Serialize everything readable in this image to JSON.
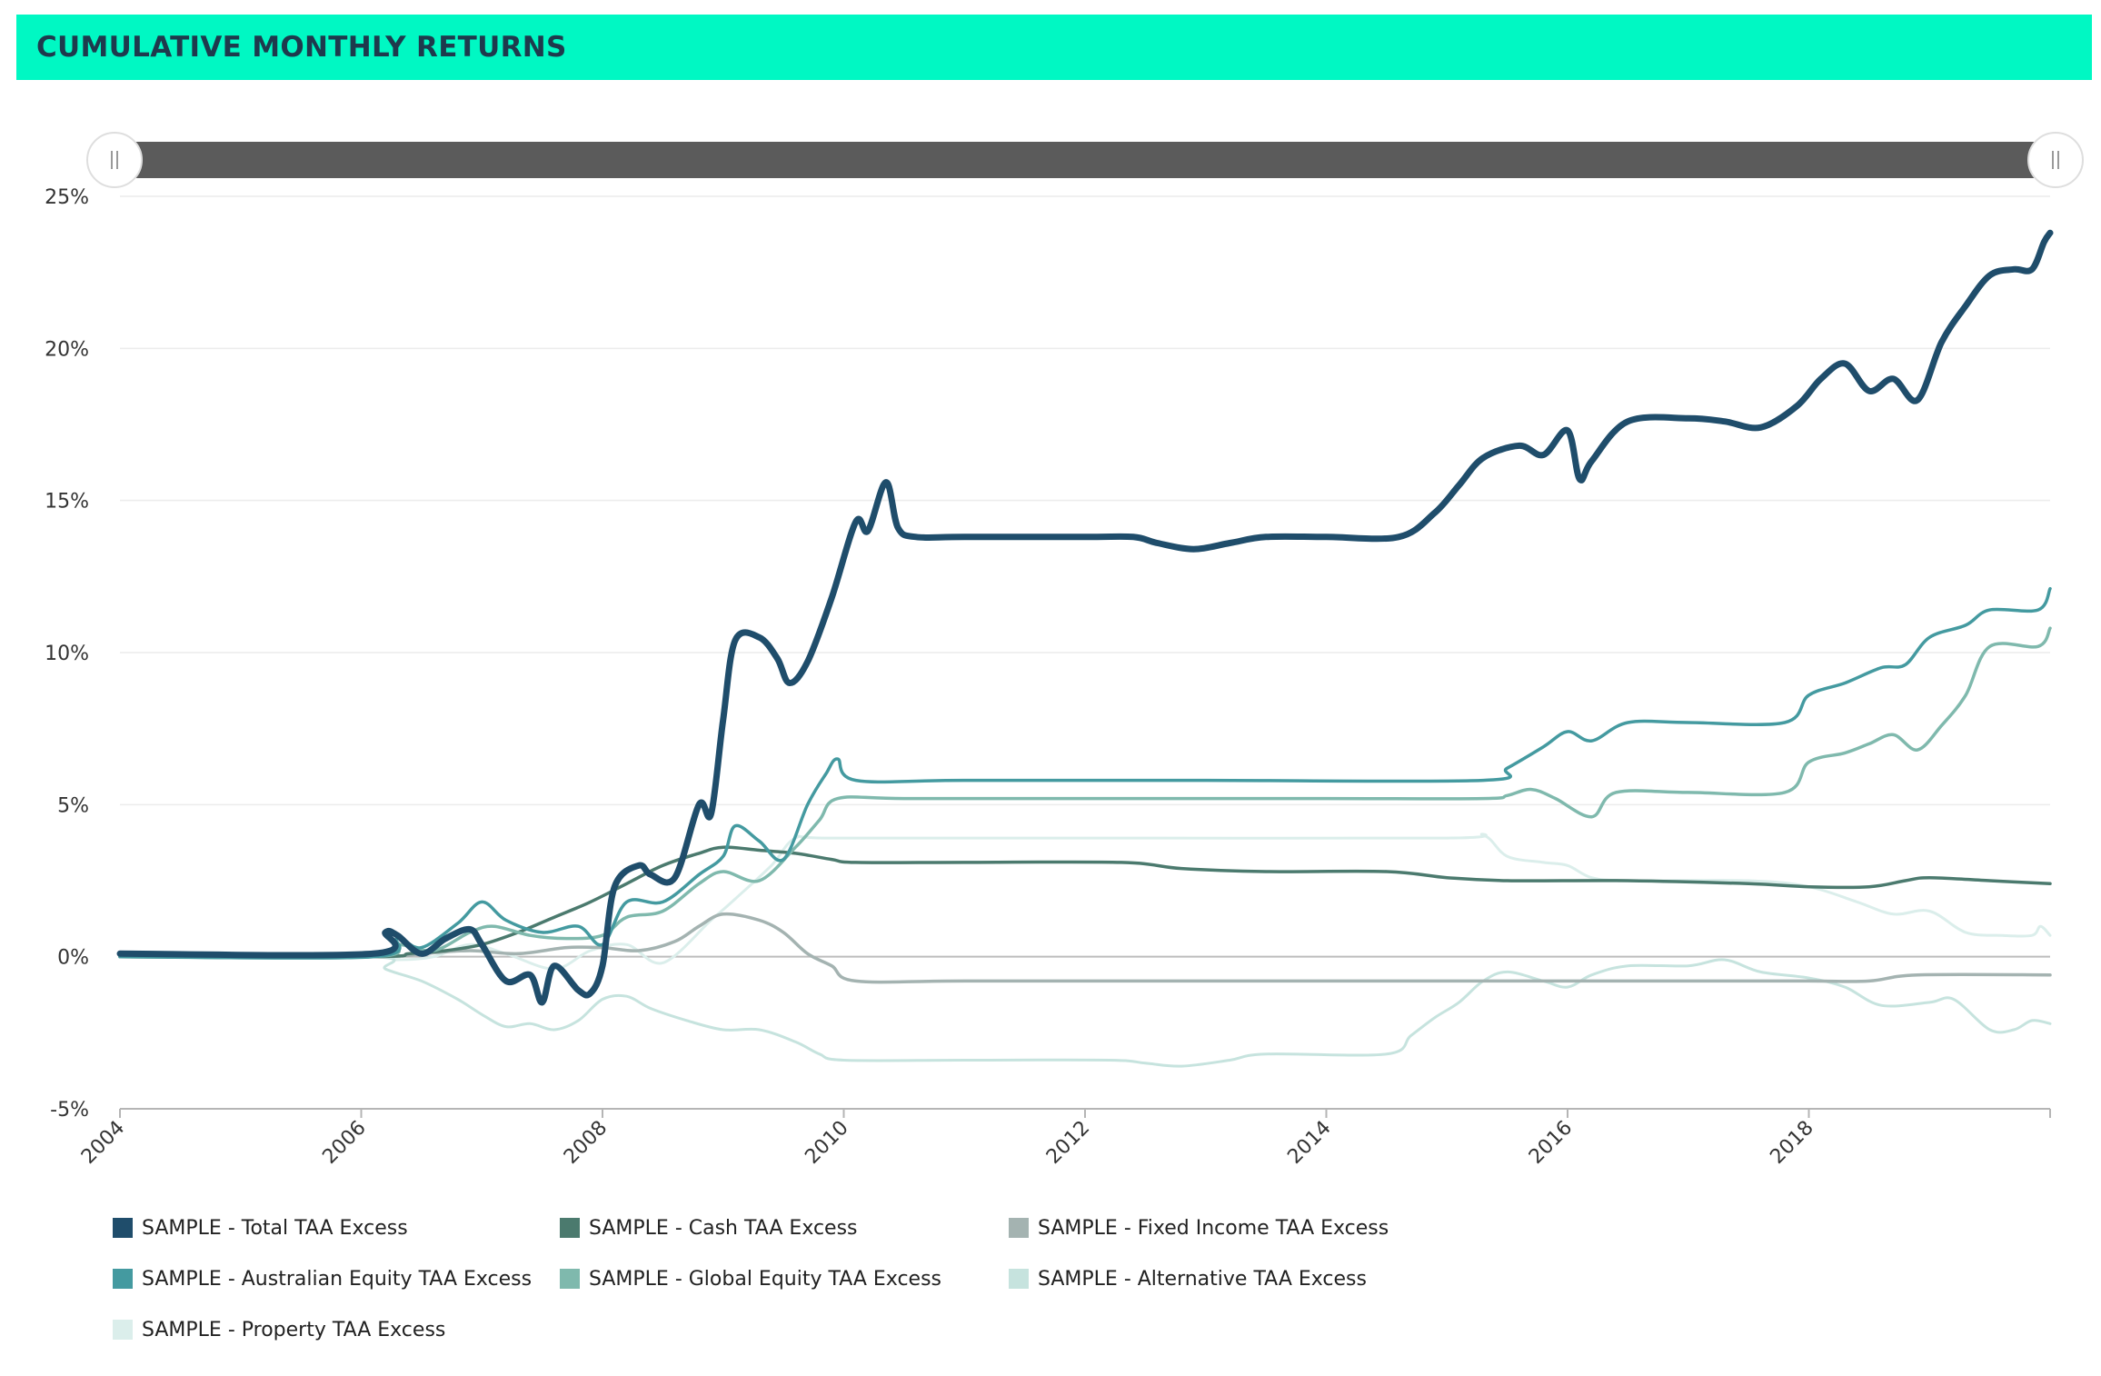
{
  "header": {
    "title": "CUMULATIVE MONTHLY RETURNS"
  },
  "colors": {
    "header_bg": "#00f8c3",
    "header_text": "#1e3a4d",
    "navigator": "#5b5b5b"
  },
  "range_selector": {
    "handle_left_icon": "grip-icon",
    "handle_right_icon": "grip-icon"
  },
  "chart_data": {
    "type": "line",
    "title": "",
    "xlabel": "",
    "ylabel": "",
    "x_range": [
      2004.0,
      2020.0
    ],
    "ylim": [
      -5,
      25
    ],
    "y_ticks": [
      -5,
      0,
      5,
      10,
      15,
      20,
      25
    ],
    "y_tick_labels": [
      "-5%",
      "0%",
      "5%",
      "10%",
      "15%",
      "20%",
      "25%"
    ],
    "x_ticks": [
      2004,
      2006,
      2008,
      2010,
      2012,
      2014,
      2016,
      2018
    ],
    "x_tick_labels": [
      "2004",
      "2006",
      "2008",
      "2010",
      "2012",
      "2014",
      "2016",
      "2018"
    ],
    "grid": "horizontal",
    "legend_position": "bottom-left",
    "series": [
      {
        "name": "SAMPLE - Property TAA Excess",
        "color": "#dbeeeb",
        "width": 3,
        "points": [
          [
            2004.0,
            0.0
          ],
          [
            2006.1,
            0.0
          ],
          [
            2006.3,
            -0.1
          ],
          [
            2006.6,
            0.0
          ],
          [
            2006.9,
            0.4
          ],
          [
            2007.2,
            0.1
          ],
          [
            2007.6,
            -0.4
          ],
          [
            2007.9,
            0.2
          ],
          [
            2008.2,
            0.4
          ],
          [
            2008.5,
            -0.2
          ],
          [
            2008.9,
            1.2
          ],
          [
            2009.1,
            1.9
          ],
          [
            2009.4,
            3.0
          ],
          [
            2009.6,
            3.9
          ],
          [
            2009.9,
            3.9
          ],
          [
            2012.0,
            3.9
          ],
          [
            2015.0,
            3.9
          ],
          [
            2015.3,
            4.0
          ],
          [
            2015.5,
            3.3
          ],
          [
            2015.8,
            3.1
          ],
          [
            2016.0,
            3.0
          ],
          [
            2016.2,
            2.6
          ],
          [
            2016.5,
            2.5
          ],
          [
            2017.5,
            2.5
          ],
          [
            2018.0,
            2.3
          ],
          [
            2018.4,
            1.8
          ],
          [
            2018.7,
            1.4
          ],
          [
            2019.0,
            1.5
          ],
          [
            2019.3,
            0.8
          ],
          [
            2019.6,
            0.7
          ],
          [
            2019.85,
            0.7
          ],
          [
            2019.92,
            1.0
          ],
          [
            2020.0,
            0.7
          ]
        ]
      },
      {
        "name": "SAMPLE - Alternative TAA Excess",
        "color": "#c6e3de",
        "width": 3,
        "points": [
          [
            2004.0,
            0.0
          ],
          [
            2006.1,
            0.0
          ],
          [
            2006.2,
            -0.4
          ],
          [
            2006.5,
            -0.8
          ],
          [
            2006.8,
            -1.4
          ],
          [
            2007.0,
            -1.9
          ],
          [
            2007.2,
            -2.3
          ],
          [
            2007.4,
            -2.2
          ],
          [
            2007.6,
            -2.4
          ],
          [
            2007.8,
            -2.1
          ],
          [
            2008.0,
            -1.4
          ],
          [
            2008.2,
            -1.3
          ],
          [
            2008.4,
            -1.7
          ],
          [
            2008.7,
            -2.1
          ],
          [
            2009.0,
            -2.4
          ],
          [
            2009.3,
            -2.4
          ],
          [
            2009.6,
            -2.8
          ],
          [
            2009.8,
            -3.2
          ],
          [
            2010.0,
            -3.4
          ],
          [
            2011.0,
            -3.4
          ],
          [
            2012.2,
            -3.4
          ],
          [
            2012.5,
            -3.5
          ],
          [
            2012.8,
            -3.6
          ],
          [
            2013.2,
            -3.4
          ],
          [
            2013.5,
            -3.2
          ],
          [
            2014.5,
            -3.2
          ],
          [
            2014.7,
            -2.6
          ],
          [
            2014.9,
            -2.0
          ],
          [
            2015.1,
            -1.5
          ],
          [
            2015.3,
            -0.8
          ],
          [
            2015.5,
            -0.5
          ],
          [
            2015.8,
            -0.8
          ],
          [
            2016.0,
            -1.0
          ],
          [
            2016.2,
            -0.6
          ],
          [
            2016.5,
            -0.3
          ],
          [
            2017.0,
            -0.3
          ],
          [
            2017.3,
            -0.1
          ],
          [
            2017.6,
            -0.5
          ],
          [
            2018.0,
            -0.7
          ],
          [
            2018.3,
            -1.0
          ],
          [
            2018.6,
            -1.6
          ],
          [
            2019.0,
            -1.5
          ],
          [
            2019.2,
            -1.4
          ],
          [
            2019.5,
            -2.4
          ],
          [
            2019.7,
            -2.4
          ],
          [
            2019.85,
            -2.1
          ],
          [
            2020.0,
            -2.2
          ]
        ]
      },
      {
        "name": "SAMPLE - Fixed Income TAA Excess",
        "color": "#a4b3b1",
        "width": 3.5,
        "points": [
          [
            2004.0,
            0.0
          ],
          [
            2006.1,
            0.0
          ],
          [
            2006.5,
            0.1
          ],
          [
            2006.9,
            0.2
          ],
          [
            2007.3,
            0.1
          ],
          [
            2007.7,
            0.3
          ],
          [
            2008.0,
            0.3
          ],
          [
            2008.3,
            0.2
          ],
          [
            2008.6,
            0.5
          ],
          [
            2008.8,
            1.0
          ],
          [
            2009.0,
            1.4
          ],
          [
            2009.3,
            1.2
          ],
          [
            2009.5,
            0.8
          ],
          [
            2009.7,
            0.1
          ],
          [
            2009.9,
            -0.3
          ],
          [
            2010.1,
            -0.8
          ],
          [
            2011.0,
            -0.8
          ],
          [
            2013.0,
            -0.8
          ],
          [
            2015.0,
            -0.8
          ],
          [
            2017.0,
            -0.8
          ],
          [
            2018.0,
            -0.8
          ],
          [
            2018.5,
            -0.8
          ],
          [
            2018.9,
            -0.6
          ],
          [
            2020.0,
            -0.6
          ]
        ]
      },
      {
        "name": "SAMPLE - Cash TAA Excess",
        "color": "#4b7a6e",
        "width": 3.5,
        "points": [
          [
            2004.0,
            0.0
          ],
          [
            2006.1,
            0.0
          ],
          [
            2006.4,
            0.1
          ],
          [
            2006.7,
            0.2
          ],
          [
            2007.0,
            0.4
          ],
          [
            2007.3,
            0.8
          ],
          [
            2007.6,
            1.3
          ],
          [
            2007.9,
            1.8
          ],
          [
            2008.2,
            2.4
          ],
          [
            2008.5,
            3.0
          ],
          [
            2008.8,
            3.4
          ],
          [
            2009.0,
            3.6
          ],
          [
            2009.3,
            3.5
          ],
          [
            2009.6,
            3.4
          ],
          [
            2009.9,
            3.2
          ],
          [
            2010.1,
            3.1
          ],
          [
            2011.0,
            3.1
          ],
          [
            2012.3,
            3.1
          ],
          [
            2012.8,
            2.9
          ],
          [
            2013.5,
            2.8
          ],
          [
            2014.5,
            2.8
          ],
          [
            2015.0,
            2.6
          ],
          [
            2015.5,
            2.5
          ],
          [
            2016.5,
            2.5
          ],
          [
            2017.5,
            2.4
          ],
          [
            2018.0,
            2.3
          ],
          [
            2018.5,
            2.3
          ],
          [
            2018.8,
            2.5
          ],
          [
            2019.0,
            2.6
          ],
          [
            2019.5,
            2.5
          ],
          [
            2020.0,
            2.4
          ]
        ]
      },
      {
        "name": "SAMPLE - Global Equity TAA Excess",
        "color": "#7fb9ad",
        "width": 3.5,
        "points": [
          [
            2004.0,
            0.0
          ],
          [
            2006.1,
            0.0
          ],
          [
            2006.3,
            0.4
          ],
          [
            2006.6,
            0.2
          ],
          [
            2006.9,
            0.8
          ],
          [
            2007.1,
            1.0
          ],
          [
            2007.4,
            0.7
          ],
          [
            2007.7,
            0.6
          ],
          [
            2008.0,
            0.7
          ],
          [
            2008.2,
            1.3
          ],
          [
            2008.5,
            1.5
          ],
          [
            2008.8,
            2.4
          ],
          [
            2009.0,
            2.8
          ],
          [
            2009.3,
            2.5
          ],
          [
            2009.6,
            3.6
          ],
          [
            2009.8,
            4.5
          ],
          [
            2009.95,
            5.2
          ],
          [
            2010.5,
            5.2
          ],
          [
            2012.0,
            5.2
          ],
          [
            2014.0,
            5.2
          ],
          [
            2015.3,
            5.2
          ],
          [
            2015.5,
            5.3
          ],
          [
            2015.7,
            5.5
          ],
          [
            2015.9,
            5.2
          ],
          [
            2016.2,
            4.6
          ],
          [
            2016.4,
            5.4
          ],
          [
            2017.0,
            5.4
          ],
          [
            2017.8,
            5.4
          ],
          [
            2018.0,
            6.4
          ],
          [
            2018.3,
            6.7
          ],
          [
            2018.5,
            7.0
          ],
          [
            2018.7,
            7.3
          ],
          [
            2018.9,
            6.8
          ],
          [
            2019.1,
            7.6
          ],
          [
            2019.3,
            8.6
          ],
          [
            2019.5,
            10.2
          ],
          [
            2019.9,
            10.2
          ],
          [
            2020.0,
            10.8
          ]
        ]
      },
      {
        "name": "SAMPLE - Australian Equity TAA Excess",
        "color": "#449aa0",
        "width": 3.5,
        "points": [
          [
            2004.0,
            0.0
          ],
          [
            2006.1,
            0.0
          ],
          [
            2006.3,
            0.6
          ],
          [
            2006.5,
            0.3
          ],
          [
            2006.8,
            1.1
          ],
          [
            2007.0,
            1.8
          ],
          [
            2007.2,
            1.2
          ],
          [
            2007.5,
            0.8
          ],
          [
            2007.8,
            1.0
          ],
          [
            2008.0,
            0.4
          ],
          [
            2008.2,
            1.8
          ],
          [
            2008.5,
            1.8
          ],
          [
            2008.8,
            2.7
          ],
          [
            2009.0,
            3.3
          ],
          [
            2009.1,
            4.3
          ],
          [
            2009.3,
            3.8
          ],
          [
            2009.5,
            3.2
          ],
          [
            2009.7,
            5.0
          ],
          [
            2009.85,
            6.0
          ],
          [
            2009.95,
            6.5
          ],
          [
            2010.1,
            5.8
          ],
          [
            2011.0,
            5.8
          ],
          [
            2013.0,
            5.8
          ],
          [
            2015.3,
            5.8
          ],
          [
            2015.5,
            6.2
          ],
          [
            2015.8,
            6.9
          ],
          [
            2016.0,
            7.4
          ],
          [
            2016.2,
            7.1
          ],
          [
            2016.5,
            7.7
          ],
          [
            2017.0,
            7.7
          ],
          [
            2017.8,
            7.7
          ],
          [
            2018.0,
            8.6
          ],
          [
            2018.3,
            9.0
          ],
          [
            2018.6,
            9.5
          ],
          [
            2018.8,
            9.6
          ],
          [
            2019.0,
            10.5
          ],
          [
            2019.3,
            10.9
          ],
          [
            2019.5,
            11.4
          ],
          [
            2019.9,
            11.4
          ],
          [
            2020.0,
            12.1
          ]
        ]
      },
      {
        "name": "SAMPLE - Total TAA Excess",
        "color": "#1f4d6b",
        "width": 7,
        "points": [
          [
            2004.0,
            0.1
          ],
          [
            2006.1,
            0.1
          ],
          [
            2006.2,
            0.8
          ],
          [
            2006.3,
            0.7
          ],
          [
            2006.5,
            0.1
          ],
          [
            2006.7,
            0.6
          ],
          [
            2006.9,
            0.9
          ],
          [
            2007.0,
            0.4
          ],
          [
            2007.2,
            -0.8
          ],
          [
            2007.4,
            -0.6
          ],
          [
            2007.5,
            -1.5
          ],
          [
            2007.6,
            -0.3
          ],
          [
            2007.8,
            -1.1
          ],
          [
            2007.9,
            -1.2
          ],
          [
            2008.0,
            -0.3
          ],
          [
            2008.1,
            2.3
          ],
          [
            2008.3,
            3.0
          ],
          [
            2008.4,
            2.7
          ],
          [
            2008.6,
            2.6
          ],
          [
            2008.8,
            5.0
          ],
          [
            2008.9,
            4.7
          ],
          [
            2009.0,
            7.8
          ],
          [
            2009.1,
            10.4
          ],
          [
            2009.3,
            10.5
          ],
          [
            2009.45,
            9.8
          ],
          [
            2009.55,
            9.0
          ],
          [
            2009.7,
            9.7
          ],
          [
            2009.9,
            11.8
          ],
          [
            2010.1,
            14.3
          ],
          [
            2010.2,
            14.0
          ],
          [
            2010.35,
            15.6
          ],
          [
            2010.45,
            14.1
          ],
          [
            2010.6,
            13.8
          ],
          [
            2011.0,
            13.8
          ],
          [
            2012.0,
            13.8
          ],
          [
            2012.4,
            13.8
          ],
          [
            2012.6,
            13.6
          ],
          [
            2012.9,
            13.4
          ],
          [
            2013.2,
            13.6
          ],
          [
            2013.5,
            13.8
          ],
          [
            2014.0,
            13.8
          ],
          [
            2014.6,
            13.8
          ],
          [
            2014.9,
            14.6
          ],
          [
            2015.1,
            15.5
          ],
          [
            2015.3,
            16.4
          ],
          [
            2015.6,
            16.8
          ],
          [
            2015.8,
            16.5
          ],
          [
            2016.0,
            17.3
          ],
          [
            2016.1,
            15.7
          ],
          [
            2016.2,
            16.3
          ],
          [
            2016.5,
            17.6
          ],
          [
            2017.0,
            17.7
          ],
          [
            2017.3,
            17.6
          ],
          [
            2017.6,
            17.4
          ],
          [
            2017.9,
            18.1
          ],
          [
            2018.1,
            19.0
          ],
          [
            2018.3,
            19.5
          ],
          [
            2018.5,
            18.6
          ],
          [
            2018.7,
            19.0
          ],
          [
            2018.9,
            18.3
          ],
          [
            2019.1,
            20.2
          ],
          [
            2019.3,
            21.4
          ],
          [
            2019.5,
            22.4
          ],
          [
            2019.7,
            22.6
          ],
          [
            2019.85,
            22.6
          ],
          [
            2019.95,
            23.5
          ],
          [
            2020.0,
            23.8
          ]
        ]
      }
    ]
  }
}
